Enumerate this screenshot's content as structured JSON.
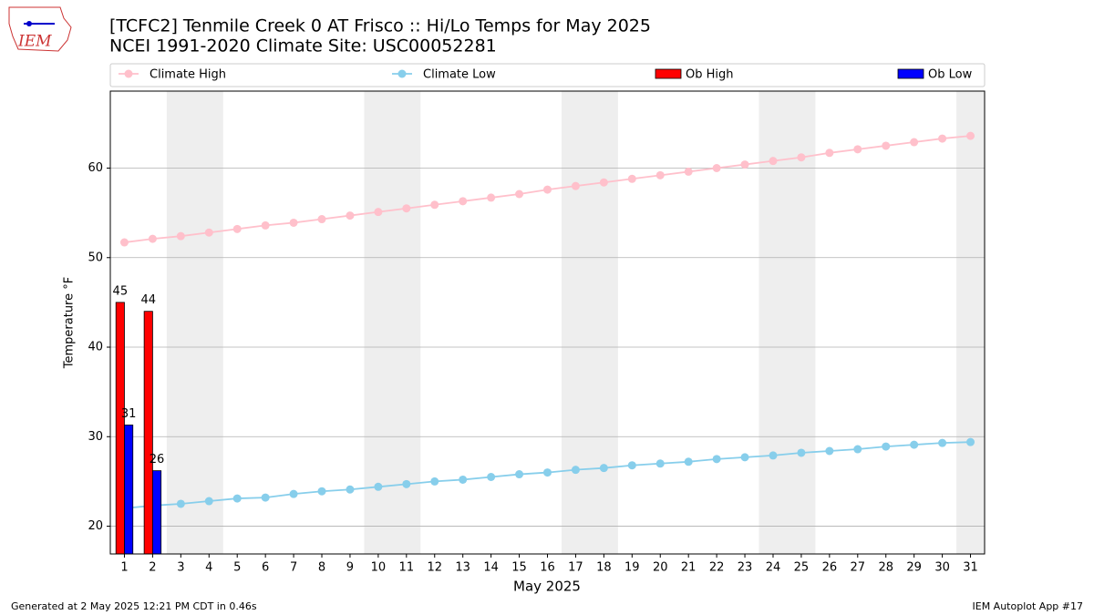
{
  "chart_data": {
    "type": "line",
    "title": "[TCFC2] Tenmile Creek 0 AT Frisco :: Hi/Lo Temps for May 2025",
    "subtitle": "NCEI 1991-2020 Climate Site: USC00052281",
    "xlabel": "May 2025",
    "ylabel": "Temperature °F",
    "logo_text": "IEM",
    "footer_left": "Generated at 2 May 2025 12:21 PM CDT in 0.46s",
    "footer_right": "IEM Autoplot App #17",
    "x": [
      1,
      2,
      3,
      4,
      5,
      6,
      7,
      8,
      9,
      10,
      11,
      12,
      13,
      14,
      15,
      16,
      17,
      18,
      19,
      20,
      21,
      22,
      23,
      24,
      25,
      26,
      27,
      28,
      29,
      30,
      31
    ],
    "xlim": [
      0.5,
      31.5
    ],
    "xticks": [
      1,
      2,
      3,
      4,
      5,
      6,
      7,
      8,
      9,
      10,
      11,
      12,
      13,
      14,
      15,
      16,
      17,
      18,
      19,
      20,
      21,
      22,
      23,
      24,
      25,
      26,
      27,
      28,
      29,
      30,
      31
    ],
    "ylim": [
      16.9,
      68.6
    ],
    "yticks": [
      20,
      30,
      40,
      50,
      60
    ],
    "grid": true,
    "shaded_x": [
      [
        2.5,
        4.5
      ],
      [
        9.5,
        11.5
      ],
      [
        16.5,
        18.5
      ],
      [
        23.5,
        25.5
      ],
      [
        30.5,
        31.5
      ]
    ],
    "series": [
      {
        "name": "Climate High",
        "kind": "line",
        "color": "#ffc0cb",
        "values": [
          51.7,
          52.1,
          52.4,
          52.8,
          53.2,
          53.6,
          53.9,
          54.3,
          54.7,
          55.1,
          55.5,
          55.9,
          56.3,
          56.7,
          57.1,
          57.6,
          58.0,
          58.4,
          58.8,
          59.2,
          59.6,
          60.0,
          60.4,
          60.8,
          61.2,
          61.7,
          62.1,
          62.5,
          62.9,
          63.3,
          63.6
        ]
      },
      {
        "name": "Climate Low",
        "kind": "line",
        "color": "#87ceeb",
        "values": [
          22.0,
          22.3,
          22.5,
          22.8,
          23.1,
          23.2,
          23.6,
          23.9,
          24.1,
          24.4,
          24.7,
          25.0,
          25.2,
          25.5,
          25.8,
          26.0,
          26.3,
          26.5,
          26.8,
          27.0,
          27.2,
          27.5,
          27.7,
          27.9,
          28.2,
          28.4,
          28.6,
          28.9,
          29.1,
          29.3,
          29.4
        ]
      },
      {
        "name": "Ob High",
        "kind": "bar",
        "color": "#ff0000",
        "values": [
          45,
          44,
          null,
          null,
          null,
          null,
          null,
          null,
          null,
          null,
          null,
          null,
          null,
          null,
          null,
          null,
          null,
          null,
          null,
          null,
          null,
          null,
          null,
          null,
          null,
          null,
          null,
          null,
          null,
          null,
          null
        ]
      },
      {
        "name": "Ob Low",
        "kind": "bar",
        "color": "#0000ff",
        "values": [
          31.3,
          26.2,
          null,
          null,
          null,
          null,
          null,
          null,
          null,
          null,
          null,
          null,
          null,
          null,
          null,
          null,
          null,
          null,
          null,
          null,
          null,
          null,
          null,
          null,
          null,
          null,
          null,
          null,
          null,
          null,
          null
        ],
        "value_labels": [
          "31",
          "26",
          null,
          null,
          null,
          null,
          null,
          null,
          null,
          null,
          null,
          null,
          null,
          null,
          null,
          null,
          null,
          null,
          null,
          null,
          null,
          null,
          null,
          null,
          null,
          null,
          null,
          null,
          null,
          null,
          null
        ]
      }
    ]
  }
}
